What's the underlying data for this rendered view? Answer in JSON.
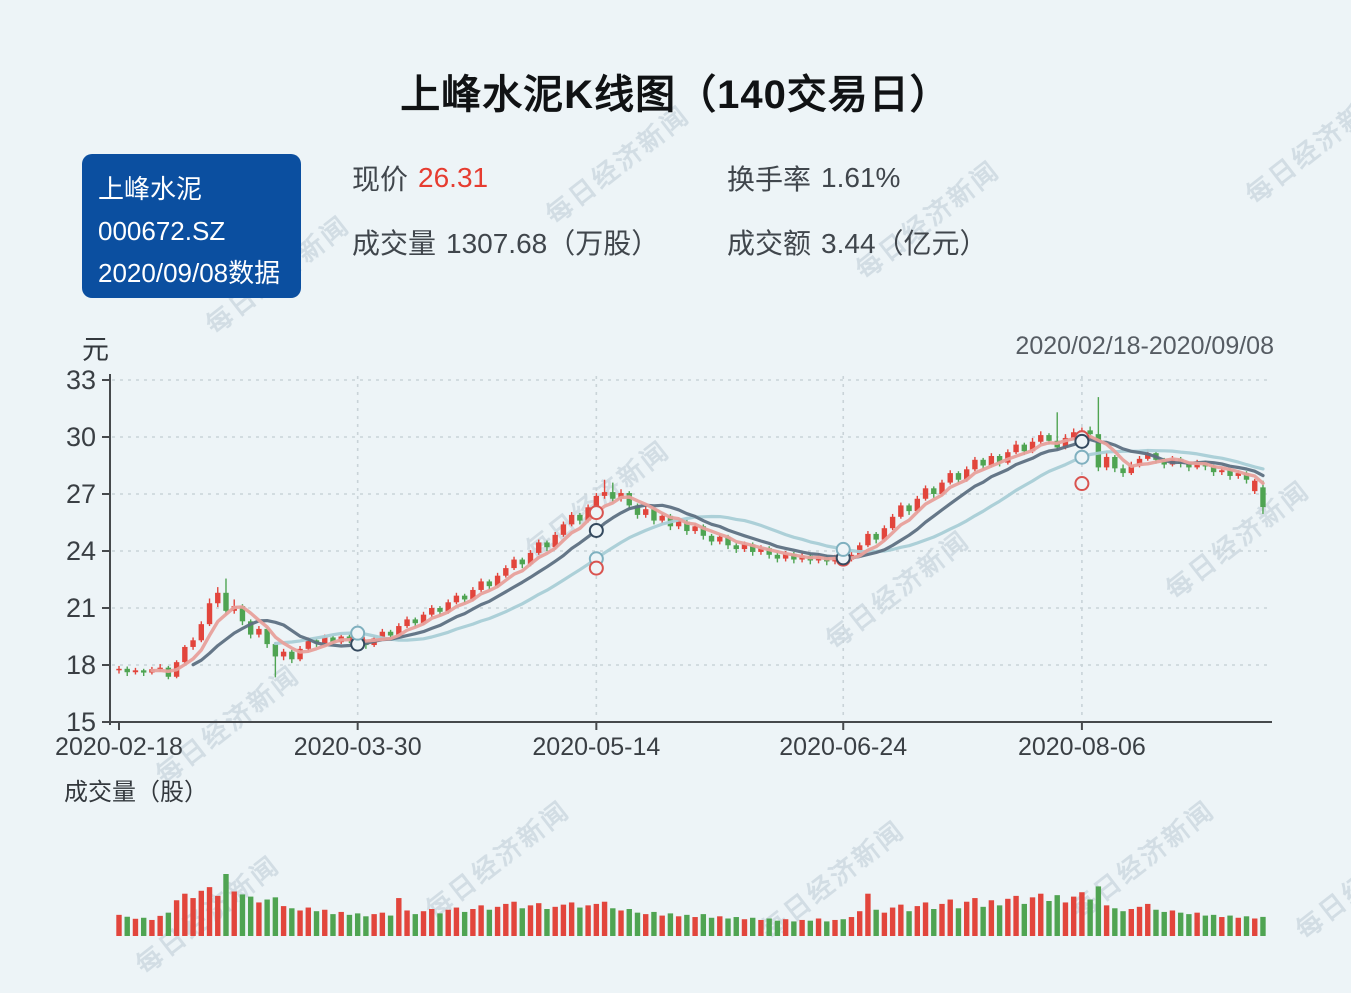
{
  "header": {
    "title": "上峰水泥K线图（140交易日）"
  },
  "info_box": {
    "line1": "上峰水泥",
    "line2": "000672.SZ",
    "line3": "2020/09/08数据",
    "bg_color": "#0b4fa0"
  },
  "stats": {
    "price_label": "现价",
    "price_value": "26.31",
    "price_color": "#e63c30",
    "turnover_label": "换手率",
    "turnover_value": "1.61%",
    "volume_label": "成交量",
    "volume_value": "1307.68（万股）",
    "amount_label": "成交额",
    "amount_value": "3.44（亿元）"
  },
  "chart": {
    "unit_label": "元",
    "date_range": "2020/02/18-2020/09/08",
    "volume_axis_label": "成交量（股）"
  },
  "watermark_text": "每日经济新闻",
  "chart_data": {
    "type": "candlestick",
    "title": "上峰水泥K线图（140交易日）",
    "ylabel": "元",
    "ylim": [
      15,
      33
    ],
    "y_ticks": [
      33,
      30,
      27,
      24,
      21,
      18,
      15
    ],
    "x_tick_labels": [
      "2020-02-18",
      "2020-03-30",
      "2020-05-14",
      "2020-06-24",
      "2020-08-06"
    ],
    "x_tick_indices": [
      0,
      29,
      58,
      88,
      117
    ],
    "grid_indices": [
      29,
      58,
      88,
      117
    ],
    "ma_periods": [
      5,
      10,
      20
    ],
    "colors": {
      "up": "#e2453c",
      "down": "#4fa452",
      "ma5": "#e8a09b",
      "ma10": "#5e7082",
      "ma20": "#a9cdd6",
      "marker_ma5": "#d9534f",
      "marker_ma10": "#34495e",
      "marker_ma20": "#7fb0bf",
      "grid": "#c9d3d8",
      "axis": "#46494c",
      "background": "#edf4f7"
    },
    "extra_markers": [
      {
        "index": 58,
        "price": 23.1
      },
      {
        "index": 117,
        "price": 27.55
      }
    ],
    "candles": [
      [
        17.75,
        17.8,
        17.55,
        17.95
      ],
      [
        17.8,
        17.62,
        17.42,
        17.92
      ],
      [
        17.62,
        17.72,
        17.5,
        17.85
      ],
      [
        17.72,
        17.6,
        17.42,
        17.8
      ],
      [
        17.6,
        17.78,
        17.5,
        17.9
      ],
      [
        17.78,
        17.86,
        17.65,
        18.05
      ],
      [
        17.86,
        17.38,
        17.25,
        17.95
      ],
      [
        17.38,
        18.15,
        17.3,
        18.25
      ],
      [
        18.15,
        18.95,
        18.05,
        19.05
      ],
      [
        18.95,
        19.3,
        18.8,
        19.45
      ],
      [
        19.3,
        20.15,
        19.2,
        20.3
      ],
      [
        20.15,
        21.25,
        20.05,
        21.5
      ],
      [
        21.25,
        21.8,
        21.05,
        22.1
      ],
      [
        21.8,
        20.85,
        20.65,
        22.55
      ],
      [
        20.85,
        21.1,
        20.7,
        21.45
      ],
      [
        21.1,
        20.3,
        20.1,
        21.2
      ],
      [
        20.3,
        19.6,
        19.4,
        20.4
      ],
      [
        19.6,
        19.9,
        19.45,
        20.05
      ],
      [
        19.9,
        19.1,
        18.9,
        20.0
      ],
      [
        19.1,
        18.45,
        17.35,
        19.2
      ],
      [
        18.45,
        18.7,
        18.25,
        18.85
      ],
      [
        18.7,
        18.3,
        18.1,
        18.8
      ],
      [
        18.3,
        18.85,
        18.2,
        19.0
      ],
      [
        18.85,
        19.3,
        18.75,
        19.45
      ],
      [
        19.3,
        19.15,
        18.95,
        19.4
      ],
      [
        19.15,
        19.45,
        19.05,
        19.6
      ],
      [
        19.45,
        19.2,
        19.05,
        19.55
      ],
      [
        19.2,
        19.5,
        19.1,
        19.65
      ],
      [
        19.5,
        19.35,
        19.15,
        19.6
      ],
      [
        19.35,
        19.2,
        19.0,
        19.45
      ],
      [
        19.2,
        19.05,
        18.85,
        19.3
      ],
      [
        19.05,
        19.4,
        18.95,
        19.55
      ],
      [
        19.4,
        19.75,
        19.3,
        19.9
      ],
      [
        19.75,
        19.55,
        19.35,
        19.85
      ],
      [
        19.55,
        20.05,
        19.45,
        20.2
      ],
      [
        20.05,
        20.4,
        19.95,
        20.55
      ],
      [
        20.4,
        20.2,
        20.0,
        20.5
      ],
      [
        20.2,
        20.65,
        20.1,
        20.8
      ],
      [
        20.65,
        21.0,
        20.55,
        21.15
      ],
      [
        21.0,
        20.8,
        20.6,
        21.1
      ],
      [
        20.8,
        21.3,
        20.7,
        21.45
      ],
      [
        21.3,
        21.65,
        21.2,
        21.8
      ],
      [
        21.65,
        21.45,
        21.25,
        21.75
      ],
      [
        21.45,
        21.95,
        21.35,
        22.1
      ],
      [
        21.95,
        22.4,
        21.85,
        22.55
      ],
      [
        22.4,
        22.15,
        21.95,
        22.5
      ],
      [
        22.15,
        22.7,
        22.05,
        22.85
      ],
      [
        22.7,
        23.1,
        22.6,
        23.25
      ],
      [
        23.1,
        23.55,
        23.0,
        23.7
      ],
      [
        23.55,
        23.3,
        23.1,
        23.65
      ],
      [
        23.3,
        23.9,
        23.2,
        24.05
      ],
      [
        23.9,
        24.45,
        23.8,
        24.6
      ],
      [
        24.45,
        24.2,
        24.0,
        24.55
      ],
      [
        24.2,
        24.85,
        24.1,
        25.0
      ],
      [
        24.85,
        25.4,
        24.75,
        25.55
      ],
      [
        25.4,
        25.9,
        25.3,
        26.05
      ],
      [
        25.9,
        25.6,
        25.4,
        26.0
      ],
      [
        25.6,
        26.3,
        25.5,
        26.45
      ],
      [
        26.3,
        26.9,
        26.2,
        27.05
      ],
      [
        26.9,
        27.1,
        26.75,
        27.75
      ],
      [
        27.1,
        26.75,
        26.55,
        27.6
      ],
      [
        26.75,
        27.05,
        26.6,
        27.25
      ],
      [
        27.05,
        26.4,
        26.2,
        27.15
      ],
      [
        26.4,
        25.9,
        25.7,
        26.5
      ],
      [
        25.9,
        26.2,
        25.75,
        26.4
      ],
      [
        26.2,
        25.6,
        25.4,
        26.3
      ],
      [
        25.6,
        25.85,
        25.45,
        26.0
      ],
      [
        25.85,
        25.3,
        25.1,
        25.95
      ],
      [
        25.3,
        25.55,
        25.15,
        25.7
      ],
      [
        25.55,
        25.05,
        24.85,
        25.65
      ],
      [
        25.05,
        25.3,
        24.9,
        25.45
      ],
      [
        25.3,
        24.8,
        24.6,
        25.4
      ],
      [
        24.8,
        24.5,
        24.3,
        24.9
      ],
      [
        24.5,
        24.75,
        24.35,
        24.9
      ],
      [
        24.75,
        24.3,
        24.1,
        24.85
      ],
      [
        24.3,
        24.1,
        23.9,
        24.4
      ],
      [
        24.1,
        24.35,
        23.95,
        24.5
      ],
      [
        24.35,
        23.95,
        23.75,
        24.45
      ],
      [
        23.95,
        24.15,
        23.8,
        24.3
      ],
      [
        24.15,
        23.8,
        23.6,
        24.25
      ],
      [
        23.8,
        23.6,
        23.4,
        23.9
      ],
      [
        23.6,
        23.85,
        23.45,
        24.0
      ],
      [
        23.85,
        23.55,
        23.35,
        23.95
      ],
      [
        23.55,
        23.75,
        23.4,
        23.9
      ],
      [
        23.75,
        23.5,
        23.3,
        23.85
      ],
      [
        23.5,
        23.7,
        23.35,
        23.85
      ],
      [
        23.7,
        23.45,
        23.25,
        23.8
      ],
      [
        23.45,
        23.65,
        23.3,
        23.8
      ],
      [
        23.65,
        23.55,
        23.35,
        23.75
      ],
      [
        23.55,
        23.8,
        23.45,
        23.95
      ],
      [
        23.8,
        24.3,
        23.7,
        24.45
      ],
      [
        24.3,
        24.9,
        24.2,
        25.05
      ],
      [
        24.9,
        24.6,
        24.4,
        25.0
      ],
      [
        24.6,
        25.2,
        24.5,
        25.35
      ],
      [
        25.2,
        25.8,
        25.1,
        25.95
      ],
      [
        25.8,
        26.4,
        25.7,
        26.55
      ],
      [
        26.4,
        26.1,
        25.9,
        26.5
      ],
      [
        26.1,
        26.75,
        26.0,
        26.9
      ],
      [
        26.75,
        27.3,
        26.65,
        27.45
      ],
      [
        27.3,
        27.0,
        26.8,
        27.4
      ],
      [
        27.0,
        27.6,
        26.9,
        27.75
      ],
      [
        27.6,
        28.1,
        27.5,
        28.25
      ],
      [
        28.1,
        27.75,
        27.55,
        28.2
      ],
      [
        27.75,
        28.3,
        27.65,
        28.45
      ],
      [
        28.3,
        28.8,
        28.2,
        28.95
      ],
      [
        28.8,
        28.5,
        28.3,
        28.9
      ],
      [
        28.5,
        29.0,
        28.4,
        29.15
      ],
      [
        29.0,
        28.65,
        28.45,
        29.1
      ],
      [
        28.65,
        29.2,
        28.55,
        29.35
      ],
      [
        29.2,
        29.6,
        29.1,
        29.8
      ],
      [
        29.6,
        29.25,
        29.05,
        29.7
      ],
      [
        29.25,
        29.75,
        29.15,
        29.95
      ],
      [
        29.75,
        30.1,
        29.65,
        30.3
      ],
      [
        30.1,
        29.8,
        29.6,
        30.2
      ],
      [
        29.8,
        29.45,
        29.3,
        31.3
      ],
      [
        29.45,
        29.95,
        29.35,
        30.15
      ],
      [
        29.95,
        30.25,
        29.85,
        30.45
      ],
      [
        30.25,
        30.35,
        30.05,
        30.5
      ],
      [
        30.35,
        30.15,
        29.95,
        30.55
      ],
      [
        30.15,
        28.4,
        28.2,
        32.1
      ],
      [
        28.4,
        28.95,
        28.25,
        29.15
      ],
      [
        28.95,
        28.35,
        28.15,
        29.05
      ],
      [
        28.35,
        28.1,
        27.9,
        28.55
      ],
      [
        28.1,
        28.5,
        28.0,
        28.7
      ],
      [
        28.5,
        28.85,
        28.4,
        29.0
      ],
      [
        28.85,
        29.15,
        28.75,
        29.35
      ],
      [
        29.15,
        28.8,
        28.6,
        29.25
      ],
      [
        28.8,
        28.55,
        28.35,
        28.9
      ],
      [
        28.55,
        28.85,
        28.45,
        29.0
      ],
      [
        28.85,
        28.6,
        28.4,
        28.95
      ],
      [
        28.6,
        28.4,
        28.2,
        28.7
      ],
      [
        28.4,
        28.65,
        28.3,
        28.8
      ],
      [
        28.65,
        28.45,
        28.25,
        28.75
      ],
      [
        28.45,
        28.15,
        27.95,
        28.55
      ],
      [
        28.15,
        28.25,
        28.0,
        28.4
      ],
      [
        28.25,
        27.95,
        27.75,
        28.35
      ],
      [
        27.95,
        28.1,
        27.8,
        28.25
      ],
      [
        28.1,
        27.75,
        27.55,
        28.2
      ],
      [
        27.15,
        27.7,
        27.0,
        27.8
      ],
      [
        27.35,
        26.31,
        25.95,
        27.7
      ]
    ],
    "volumes": [
      1450,
      1320,
      1180,
      1250,
      1100,
      1380,
      1600,
      2450,
      2900,
      2600,
      3100,
      3350,
      2750,
      4250,
      3050,
      2850,
      2700,
      2300,
      2500,
      2650,
      2050,
      1900,
      1750,
      1950,
      1700,
      1800,
      1500,
      1650,
      1450,
      1550,
      1350,
      1500,
      1600,
      1400,
      2600,
      1750,
      1500,
      1700,
      1850,
      1550,
      1800,
      1950,
      1650,
      1850,
      2100,
      1800,
      2000,
      2200,
      2350,
      1900,
      2100,
      2250,
      1850,
      2000,
      2150,
      2300,
      1950,
      2100,
      2200,
      2350,
      1900,
      1750,
      1850,
      1600,
      1500,
      1650,
      1400,
      1550,
      1350,
      1450,
      1300,
      1500,
      1250,
      1350,
      1200,
      1300,
      1150,
      1250,
      1100,
      1200,
      1050,
      1150,
      1000,
      1100,
      1050,
      1200,
      1000,
      1100,
      1150,
      1300,
      1700,
      2900,
      1800,
      1600,
      1950,
      2150,
      1700,
      2050,
      2300,
      1850,
      2200,
      2500,
      1900,
      2350,
      2600,
      2000,
      2450,
      2100,
      2550,
      2750,
      2200,
      2650,
      2900,
      2400,
      2800,
      2300,
      2700,
      3000,
      2500,
      3400,
      2100,
      1900,
      1700,
      1850,
      2000,
      2200,
      1800,
      1650,
      1750,
      1600,
      1500,
      1600,
      1400,
      1450,
      1300,
      1400,
      1250,
      1350,
      1200,
      1310
    ]
  }
}
